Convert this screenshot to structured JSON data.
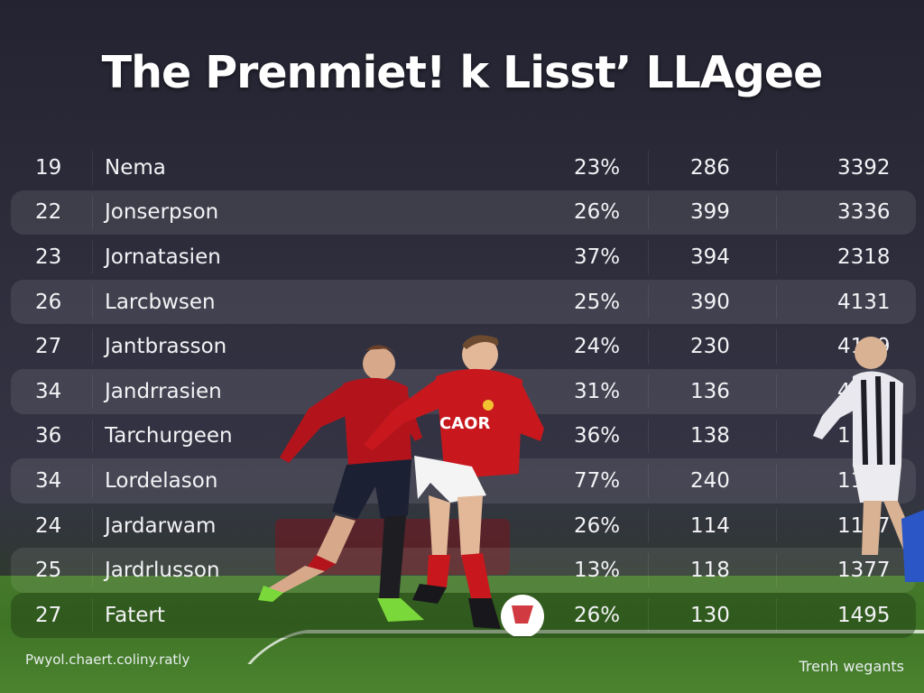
{
  "title": "The Prenmiet! k Lisst’ LLAgee",
  "rows": [
    {
      "num": "19",
      "name": "Nema",
      "pct": "23%",
      "a": "286",
      "b": "3392"
    },
    {
      "num": "22",
      "name": "Jonserpson",
      "pct": "26%",
      "a": "399",
      "b": "3336"
    },
    {
      "num": "23",
      "name": "Jornatasien",
      "pct": "37%",
      "a": "394",
      "b": "2318"
    },
    {
      "num": "26",
      "name": "Larcbwsen",
      "pct": "25%",
      "a": "390",
      "b": "4131"
    },
    {
      "num": "27",
      "name": "Jantbrasson",
      "pct": "24%",
      "a": "230",
      "b": "4119"
    },
    {
      "num": "34",
      "name": "Jandrrasien",
      "pct": "31%",
      "a": "136",
      "b": "431"
    },
    {
      "num": "36",
      "name": "Tarchurgeen",
      "pct": "36%",
      "a": "138",
      "b": "1135"
    },
    {
      "num": "34",
      "name": "Lordelason",
      "pct": "77%",
      "a": "240",
      "b": "1157"
    },
    {
      "num": "24",
      "name": "Jardarwam",
      "pct": "26%",
      "a": "114",
      "b": "1187"
    },
    {
      "num": "25",
      "name": "Jardrlusson",
      "pct": "13%",
      "a": "118",
      "b": "1377"
    },
    {
      "num": "27",
      "name": "Fatert",
      "pct": "26%",
      "a": "130",
      "b": "1495"
    }
  ],
  "footer": {
    "left": "Pwyol.chaert.coliny.ratly",
    "right": "Trenh wegants"
  },
  "jersey": {
    "text": "CAOR"
  },
  "colors": {
    "kit_red": "#c8181e",
    "kit_shorts": "#f4f4f4",
    "away_kit": "#e8e8ee",
    "pitch": "#45782a"
  }
}
